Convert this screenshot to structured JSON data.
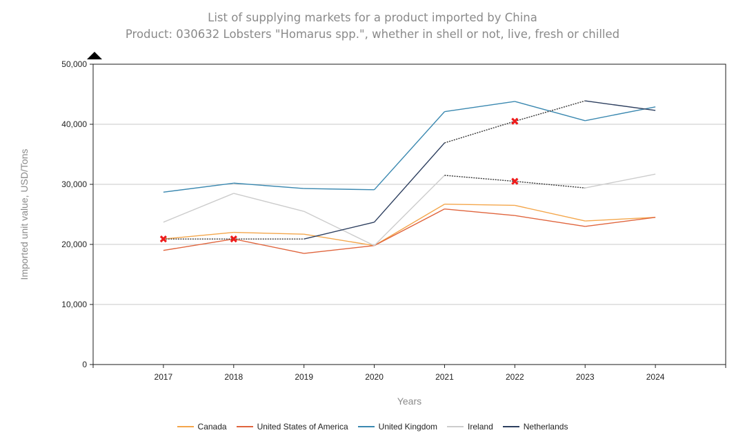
{
  "chart_data": {
    "type": "line",
    "title": "List of supplying markets for a product imported by China",
    "subtitle": "Product: 030632 Lobsters \"Homarus spp.\", whether in shell or not, live, fresh or chilled",
    "xlabel": "Years",
    "ylabel": "Imported unit value, USD/Tons",
    "x": [
      2017,
      2018,
      2019,
      2020,
      2021,
      2022,
      2023,
      2024
    ],
    "xlim": [
      2016,
      2025
    ],
    "ylim": [
      0,
      50000
    ],
    "yticks": [
      0,
      10000,
      20000,
      30000,
      40000,
      50000
    ],
    "ytick_labels": [
      "0",
      "10,000",
      "20,000",
      "30,000",
      "40,000",
      "50,000"
    ],
    "grid": "horizontal",
    "legend_position": "bottom",
    "series": [
      {
        "name": "Canada",
        "color": "#f4a64a",
        "values": [
          20900,
          22000,
          21700,
          19800,
          26700,
          26500,
          23900,
          24500
        ],
        "dotted_segments": [],
        "estimated_points": []
      },
      {
        "name": "United States of America",
        "color": "#e0643c",
        "values": [
          19000,
          20900,
          18500,
          19800,
          25900,
          24800,
          23000,
          24500
        ],
        "dotted_segments": [],
        "estimated_points": []
      },
      {
        "name": "United Kingdom",
        "color": "#3a88b0",
        "values": [
          28700,
          30200,
          29300,
          29100,
          42100,
          43800,
          40600,
          42900
        ],
        "dotted_segments": [],
        "estimated_points": []
      },
      {
        "name": "Ireland",
        "color": "#cccccc",
        "values": [
          23700,
          28500,
          25500,
          19800,
          31500,
          30500,
          29400,
          31700
        ],
        "dotted_segments": [
          [
            2021,
            2023
          ]
        ],
        "estimated_points": [
          2022
        ]
      },
      {
        "name": "Netherlands",
        "color": "#2c3e5e",
        "values": [
          20900,
          20900,
          20900,
          23700,
          36900,
          40500,
          43900,
          42300
        ],
        "dotted_segments": [
          [
            2017,
            2019
          ],
          [
            2021,
            2023
          ]
        ],
        "estimated_points": [
          2017,
          2018,
          2022
        ]
      }
    ],
    "marker_color": "#ee1c1c"
  }
}
